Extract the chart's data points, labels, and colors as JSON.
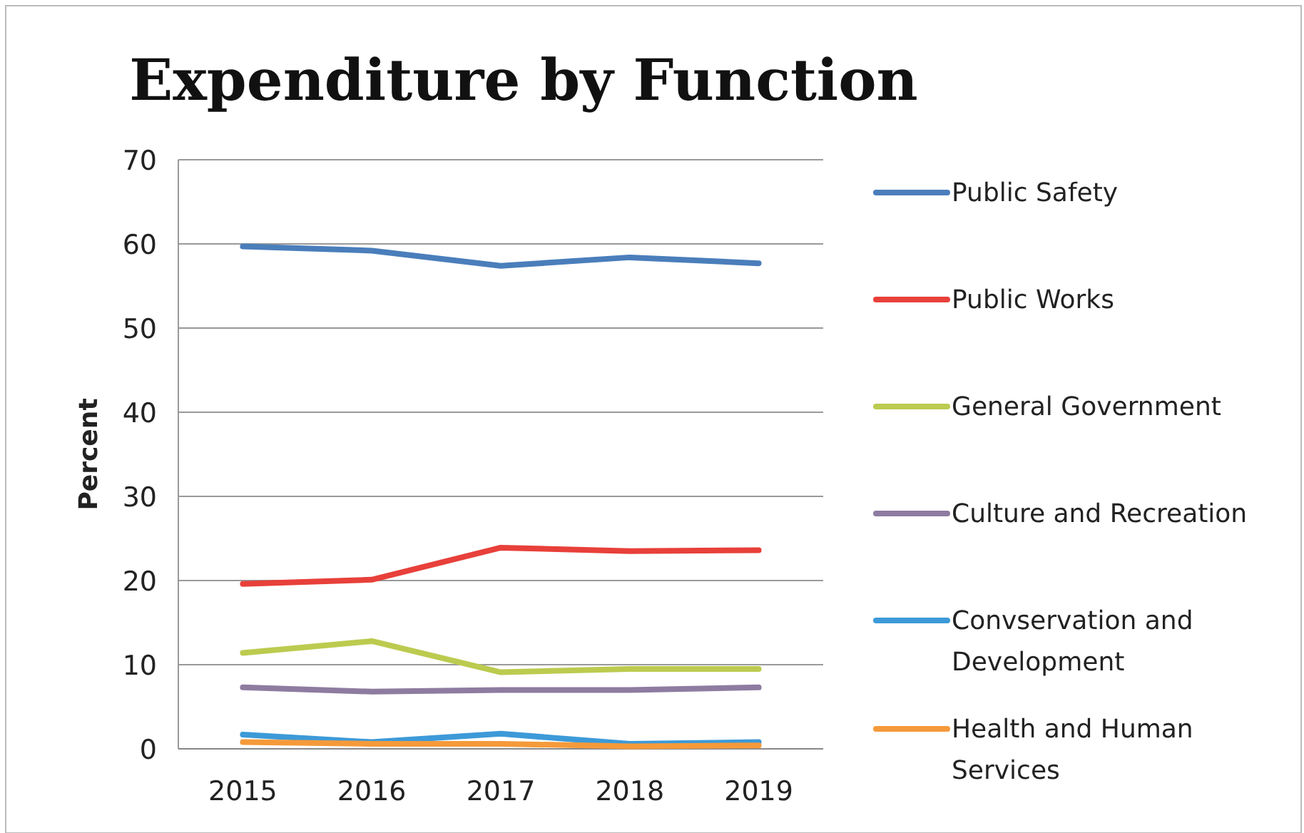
{
  "chart_data": {
    "type": "line",
    "title": "Expenditure by Function",
    "ylabel": "Percent",
    "categories": [
      "2015",
      "2016",
      "2017",
      "2018",
      "2019"
    ],
    "series": [
      {
        "name": "Public Safety",
        "color": "#4a7ebb",
        "values": [
          59.7,
          59.2,
          57.4,
          58.4,
          57.7
        ]
      },
      {
        "name": "Public Works",
        "color": "#e8403a",
        "values": [
          19.6,
          20.1,
          23.9,
          23.5,
          23.6
        ]
      },
      {
        "name": "General Government",
        "color": "#bccb4f",
        "values": [
          11.4,
          12.8,
          9.1,
          9.5,
          9.5
        ]
      },
      {
        "name": "Culture and Recreation",
        "color": "#8e7ca0",
        "values": [
          7.3,
          6.8,
          7.0,
          7.0,
          7.3
        ]
      },
      {
        "name": "Convservation and Development",
        "color": "#3d9ad8",
        "values": [
          1.7,
          0.8,
          1.8,
          0.6,
          0.8
        ]
      },
      {
        "name": "Health and Human Services",
        "color": "#f59a3a",
        "values": [
          0.8,
          0.6,
          0.6,
          0.3,
          0.4
        ]
      }
    ],
    "ylim": [
      0,
      70
    ],
    "yticks": [
      0,
      10,
      20,
      30,
      40,
      50,
      60,
      70
    ],
    "grid": "y",
    "legend": "right",
    "marker": "none"
  }
}
